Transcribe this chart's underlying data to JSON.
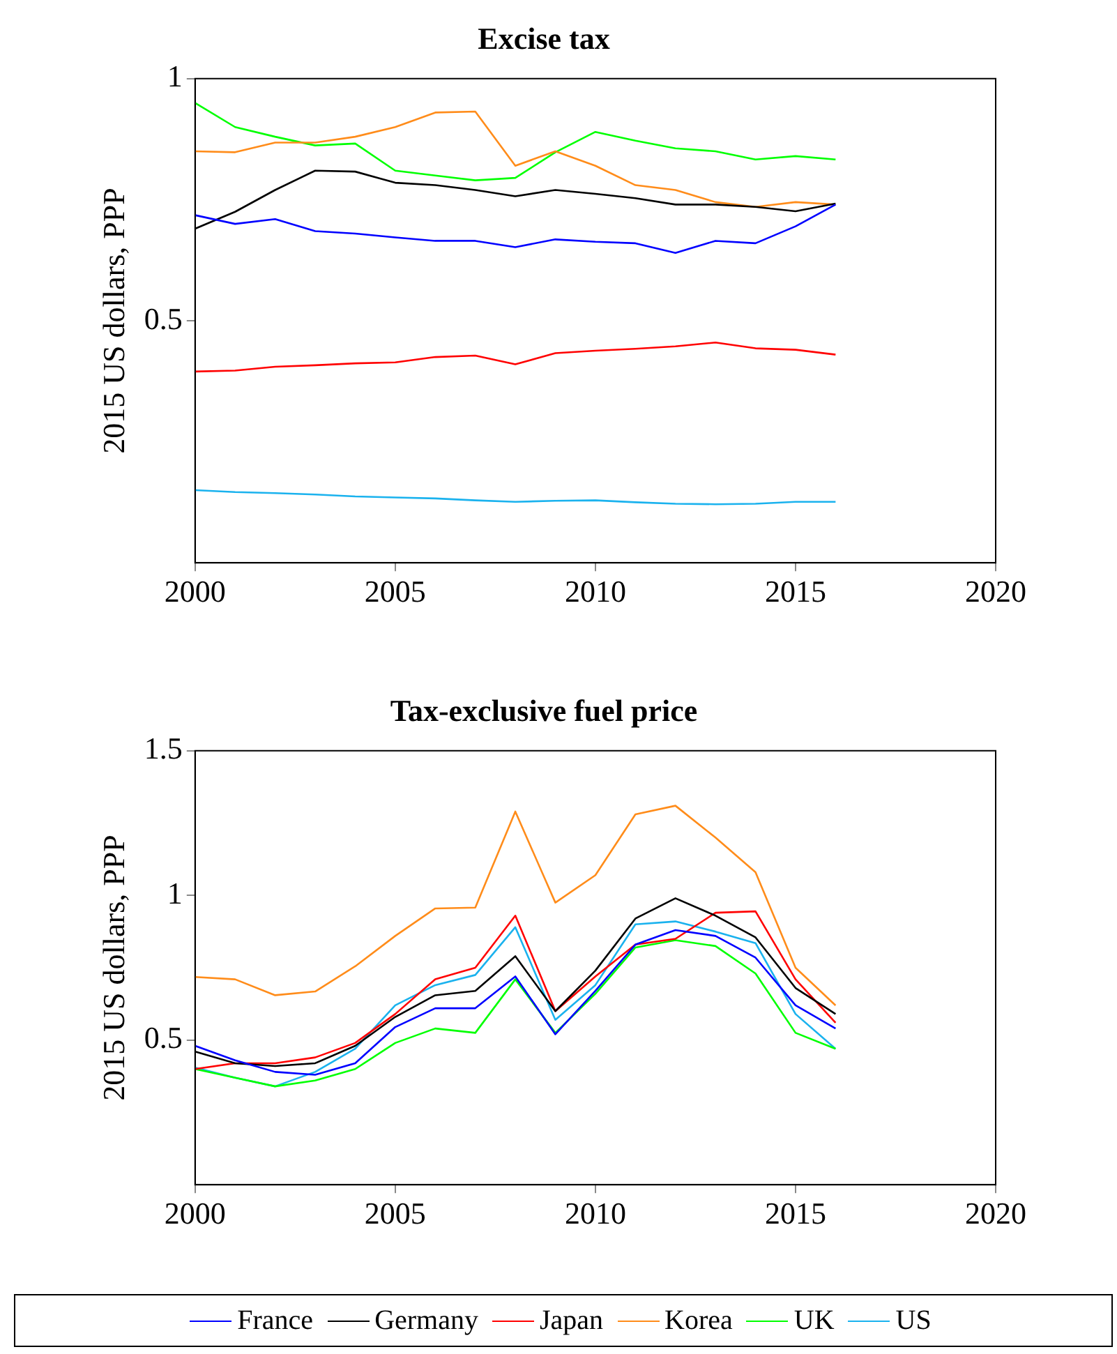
{
  "chart_data": [
    {
      "type": "line",
      "title": "Excise tax",
      "ylabel": "2015 US dollars, PPP",
      "x": [
        2000,
        2001,
        2002,
        2003,
        2004,
        2005,
        2006,
        2007,
        2008,
        2009,
        2010,
        2011,
        2012,
        2013,
        2014,
        2015,
        2016
      ],
      "xlim": [
        2000,
        2020
      ],
      "xticks": [
        2000,
        2005,
        2010,
        2015,
        2020
      ],
      "ylim": [
        0,
        1
      ],
      "yticks": [
        0.5,
        1
      ],
      "legend": "bottom",
      "series": [
        {
          "name": "France",
          "color": "#0000ff",
          "values": [
            0.718,
            0.7,
            0.71,
            0.685,
            0.68,
            0.672,
            0.665,
            0.665,
            0.652,
            0.668,
            0.663,
            0.66,
            0.64,
            0.665,
            0.66,
            0.695,
            0.74
          ]
        },
        {
          "name": "Germany",
          "color": "#000000",
          "values": [
            0.69,
            0.725,
            0.77,
            0.81,
            0.808,
            0.785,
            0.78,
            0.77,
            0.757,
            0.77,
            0.762,
            0.753,
            0.74,
            0.74,
            0.735,
            0.726,
            0.742
          ]
        },
        {
          "name": "Japan",
          "color": "#ff0000",
          "values": [
            0.395,
            0.397,
            0.405,
            0.408,
            0.412,
            0.414,
            0.425,
            0.428,
            0.41,
            0.433,
            0.438,
            0.442,
            0.447,
            0.455,
            0.443,
            0.44,
            0.43
          ]
        },
        {
          "name": "Korea",
          "color": "#ff8c1a",
          "values": [
            0.85,
            0.848,
            0.868,
            0.868,
            0.88,
            0.9,
            0.93,
            0.932,
            0.82,
            0.85,
            0.82,
            0.78,
            0.77,
            0.745,
            0.735,
            0.745,
            0.74
          ]
        },
        {
          "name": "UK",
          "color": "#00ff00",
          "values": [
            0.95,
            0.9,
            0.88,
            0.862,
            0.866,
            0.81,
            0.8,
            0.79,
            0.795,
            0.848,
            0.89,
            0.872,
            0.856,
            0.85,
            0.833,
            0.84,
            0.833
          ]
        },
        {
          "name": "US",
          "color": "#1ab2ee",
          "values": [
            0.15,
            0.146,
            0.144,
            0.141,
            0.137,
            0.135,
            0.133,
            0.129,
            0.126,
            0.128,
            0.129,
            0.125,
            0.122,
            0.121,
            0.122,
            0.126,
            0.126
          ]
        }
      ]
    },
    {
      "type": "line",
      "title": "Tax-exclusive fuel price",
      "ylabel": "2015 US dollars, PPP",
      "x": [
        2000,
        2001,
        2002,
        2003,
        2004,
        2005,
        2006,
        2007,
        2008,
        2009,
        2010,
        2011,
        2012,
        2013,
        2014,
        2015,
        2016
      ],
      "xlim": [
        2000,
        2020
      ],
      "xticks": [
        2000,
        2005,
        2010,
        2015,
        2020
      ],
      "ylim": [
        0,
        1.5
      ],
      "yticks": [
        0.5,
        1,
        1.5
      ],
      "legend": "bottom",
      "series": [
        {
          "name": "France",
          "color": "#0000ff",
          "values": [
            0.48,
            0.43,
            0.39,
            0.38,
            0.42,
            0.545,
            0.61,
            0.61,
            0.72,
            0.52,
            0.67,
            0.83,
            0.88,
            0.86,
            0.785,
            0.62,
            0.54
          ]
        },
        {
          "name": "Germany",
          "color": "#000000",
          "values": [
            0.46,
            0.42,
            0.41,
            0.42,
            0.48,
            0.58,
            0.655,
            0.67,
            0.79,
            0.6,
            0.74,
            0.92,
            0.99,
            0.93,
            0.855,
            0.68,
            0.59
          ]
        },
        {
          "name": "Japan",
          "color": "#ff0000",
          "values": [
            0.4,
            0.42,
            0.42,
            0.44,
            0.49,
            0.59,
            0.71,
            0.75,
            0.93,
            0.6,
            0.72,
            0.83,
            0.85,
            0.94,
            0.945,
            0.71,
            0.56
          ]
        },
        {
          "name": "Korea",
          "color": "#ff8c1a",
          "values": [
            0.718,
            0.71,
            0.655,
            0.668,
            0.755,
            0.86,
            0.955,
            0.958,
            1.29,
            0.975,
            1.07,
            1.28,
            1.31,
            1.2,
            1.08,
            0.75,
            0.62
          ]
        },
        {
          "name": "UK",
          "color": "#00ff00",
          "values": [
            0.4,
            0.37,
            0.34,
            0.36,
            0.4,
            0.49,
            0.54,
            0.525,
            0.71,
            0.525,
            0.66,
            0.82,
            0.845,
            0.825,
            0.73,
            0.525,
            0.47
          ]
        },
        {
          "name": "US",
          "color": "#1ab2ee",
          "values": [
            0.405,
            0.37,
            0.34,
            0.39,
            0.47,
            0.62,
            0.69,
            0.725,
            0.89,
            0.57,
            0.69,
            0.9,
            0.91,
            0.875,
            0.835,
            0.59,
            0.47
          ]
        }
      ]
    }
  ]
}
